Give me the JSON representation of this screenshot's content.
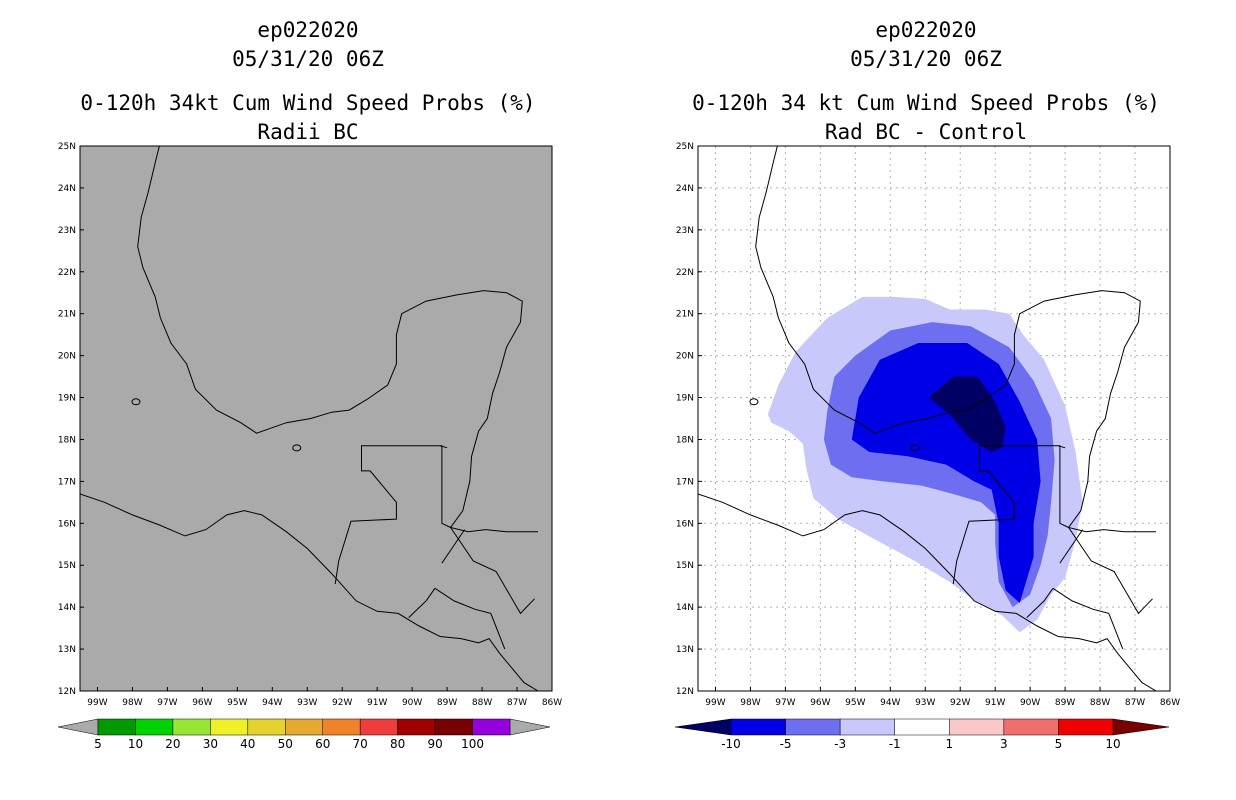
{
  "chart_data": [
    {
      "type": "heatmap",
      "title": [
        "ep022020",
        "05/31/20 06Z",
        "0-120h 34kt Cum Wind Speed Probs (%)",
        "Radii BC"
      ],
      "x_ticks": [
        "99W",
        "98W",
        "97W",
        "96W",
        "95W",
        "94W",
        "93W",
        "92W",
        "91W",
        "90W",
        "89W",
        "88W",
        "87W",
        "86W"
      ],
      "y_ticks": [
        "12N",
        "13N",
        "14N",
        "15N",
        "16N",
        "17N",
        "18N",
        "19N",
        "20N",
        "21N",
        "22N",
        "23N",
        "24N",
        "25N"
      ],
      "xlim": [
        -99.5,
        -86
      ],
      "ylim": [
        12,
        25
      ],
      "grid": false,
      "background_color": "#aaaaaa",
      "colorbar": {
        "labels": [
          "5",
          "10",
          "20",
          "30",
          "40",
          "50",
          "60",
          "70",
          "80",
          "90",
          "100"
        ],
        "colors": [
          "#009a00",
          "#00d200",
          "#96e632",
          "#f0f028",
          "#e6d22c",
          "#e6aa32",
          "#f08228",
          "#f03c3c",
          "#a00000",
          "#780000",
          "#9600dc"
        ],
        "under_color": "#aaaaaa",
        "over_color": "#aaaaaa"
      },
      "regions": []
    },
    {
      "type": "heatmap",
      "title": [
        "ep022020",
        "05/31/20 06Z",
        "0-120h 34 kt Cum Wind Speed Probs (%)",
        "Rad BC - Control"
      ],
      "x_ticks": [
        "99W",
        "98W",
        "97W",
        "96W",
        "95W",
        "94W",
        "93W",
        "92W",
        "91W",
        "90W",
        "89W",
        "88W",
        "87W",
        "86W"
      ],
      "y_ticks": [
        "12N",
        "13N",
        "14N",
        "15N",
        "16N",
        "17N",
        "18N",
        "19N",
        "20N",
        "21N",
        "22N",
        "23N",
        "24N",
        "25N"
      ],
      "xlim": [
        -99.5,
        -86
      ],
      "ylim": [
        12,
        25
      ],
      "grid": true,
      "background_color": "#ffffff",
      "colorbar": {
        "labels": [
          "-10",
          "-5",
          "-3",
          "-1",
          "1",
          "3",
          "5",
          "10"
        ],
        "colors": [
          "#0000e6",
          "#6e6ef0",
          "#c8c8fa",
          "#ffffff",
          "#fac8c8",
          "#f06e6e",
          "#f00000"
        ],
        "under_color": "#000064",
        "over_color": "#780000"
      },
      "regions": [
        {
          "level": "-1 to -3",
          "color": "#c8c8fa",
          "lonlat": [
            [
              -97.5,
              18.6
            ],
            [
              -97.2,
              19.3
            ],
            [
              -96.7,
              20.1
            ],
            [
              -95.8,
              20.9
            ],
            [
              -94.8,
              21.4
            ],
            [
              -93.9,
              21.4
            ],
            [
              -93.0,
              21.35
            ],
            [
              -92.3,
              21.1
            ],
            [
              -91.3,
              21.1
            ],
            [
              -90.6,
              21.0
            ],
            [
              -90.2,
              20.5
            ],
            [
              -89.6,
              19.9
            ],
            [
              -89.0,
              18.8
            ],
            [
              -88.7,
              17.7
            ],
            [
              -88.5,
              16.5
            ],
            [
              -88.7,
              15.6
            ],
            [
              -89.0,
              14.7
            ],
            [
              -89.4,
              14.3
            ],
            [
              -89.8,
              13.7
            ],
            [
              -90.3,
              13.4
            ],
            [
              -90.8,
              13.8
            ],
            [
              -91.5,
              14.1
            ],
            [
              -92.3,
              14.6
            ],
            [
              -93.3,
              15.1
            ],
            [
              -94.4,
              15.6
            ],
            [
              -95.5,
              16.1
            ],
            [
              -96.2,
              16.6
            ],
            [
              -96.4,
              17.3
            ],
            [
              -96.5,
              17.9
            ],
            [
              -96.9,
              18.2
            ],
            [
              -97.4,
              18.4
            ]
          ]
        },
        {
          "level": "-3 to -5",
          "color": "#6e6ef0",
          "lonlat": [
            [
              -95.9,
              18.0
            ],
            [
              -95.8,
              18.7
            ],
            [
              -95.6,
              19.5
            ],
            [
              -95.0,
              20.0
            ],
            [
              -94.0,
              20.6
            ],
            [
              -92.8,
              20.8
            ],
            [
              -91.7,
              20.7
            ],
            [
              -90.6,
              20.2
            ],
            [
              -89.9,
              19.4
            ],
            [
              -89.4,
              18.5
            ],
            [
              -89.3,
              17.5
            ],
            [
              -89.4,
              16.5
            ],
            [
              -89.5,
              15.7
            ],
            [
              -89.7,
              15.0
            ],
            [
              -90.0,
              14.3
            ],
            [
              -90.5,
              14.0
            ],
            [
              -90.9,
              14.6
            ],
            [
              -91.0,
              15.5
            ],
            [
              -91.0,
              16.2
            ],
            [
              -91.4,
              16.5
            ],
            [
              -92.2,
              16.7
            ],
            [
              -93.1,
              16.9
            ],
            [
              -94.2,
              17.0
            ],
            [
              -95.1,
              17.1
            ],
            [
              -95.7,
              17.4
            ]
          ]
        },
        {
          "level": "-5 to -10",
          "color": "#0000e6",
          "lonlat": [
            [
              -95.1,
              18.0
            ],
            [
              -94.9,
              19.0
            ],
            [
              -94.3,
              19.9
            ],
            [
              -93.2,
              20.3
            ],
            [
              -91.8,
              20.3
            ],
            [
              -90.9,
              19.8
            ],
            [
              -90.3,
              18.9
            ],
            [
              -89.8,
              18.0
            ],
            [
              -89.7,
              17.0
            ],
            [
              -89.9,
              16.0
            ],
            [
              -89.9,
              15.2
            ],
            [
              -90.3,
              14.1
            ],
            [
              -90.7,
              14.4
            ],
            [
              -90.9,
              15.2
            ],
            [
              -90.9,
              16.0
            ],
            [
              -91.1,
              16.8
            ],
            [
              -91.6,
              17.0
            ],
            [
              -92.4,
              17.4
            ],
            [
              -93.5,
              17.6
            ],
            [
              -94.6,
              17.7
            ]
          ]
        },
        {
          "level": "< -10",
          "color": "#000064",
          "lonlat": [
            [
              -92.9,
              19.0
            ],
            [
              -92.2,
              19.5
            ],
            [
              -91.5,
              19.5
            ],
            [
              -91.0,
              18.9
            ],
            [
              -90.7,
              18.3
            ],
            [
              -90.8,
              17.8
            ],
            [
              -91.1,
              17.7
            ],
            [
              -91.7,
              18.0
            ],
            [
              -92.3,
              18.6
            ]
          ]
        }
      ]
    }
  ]
}
